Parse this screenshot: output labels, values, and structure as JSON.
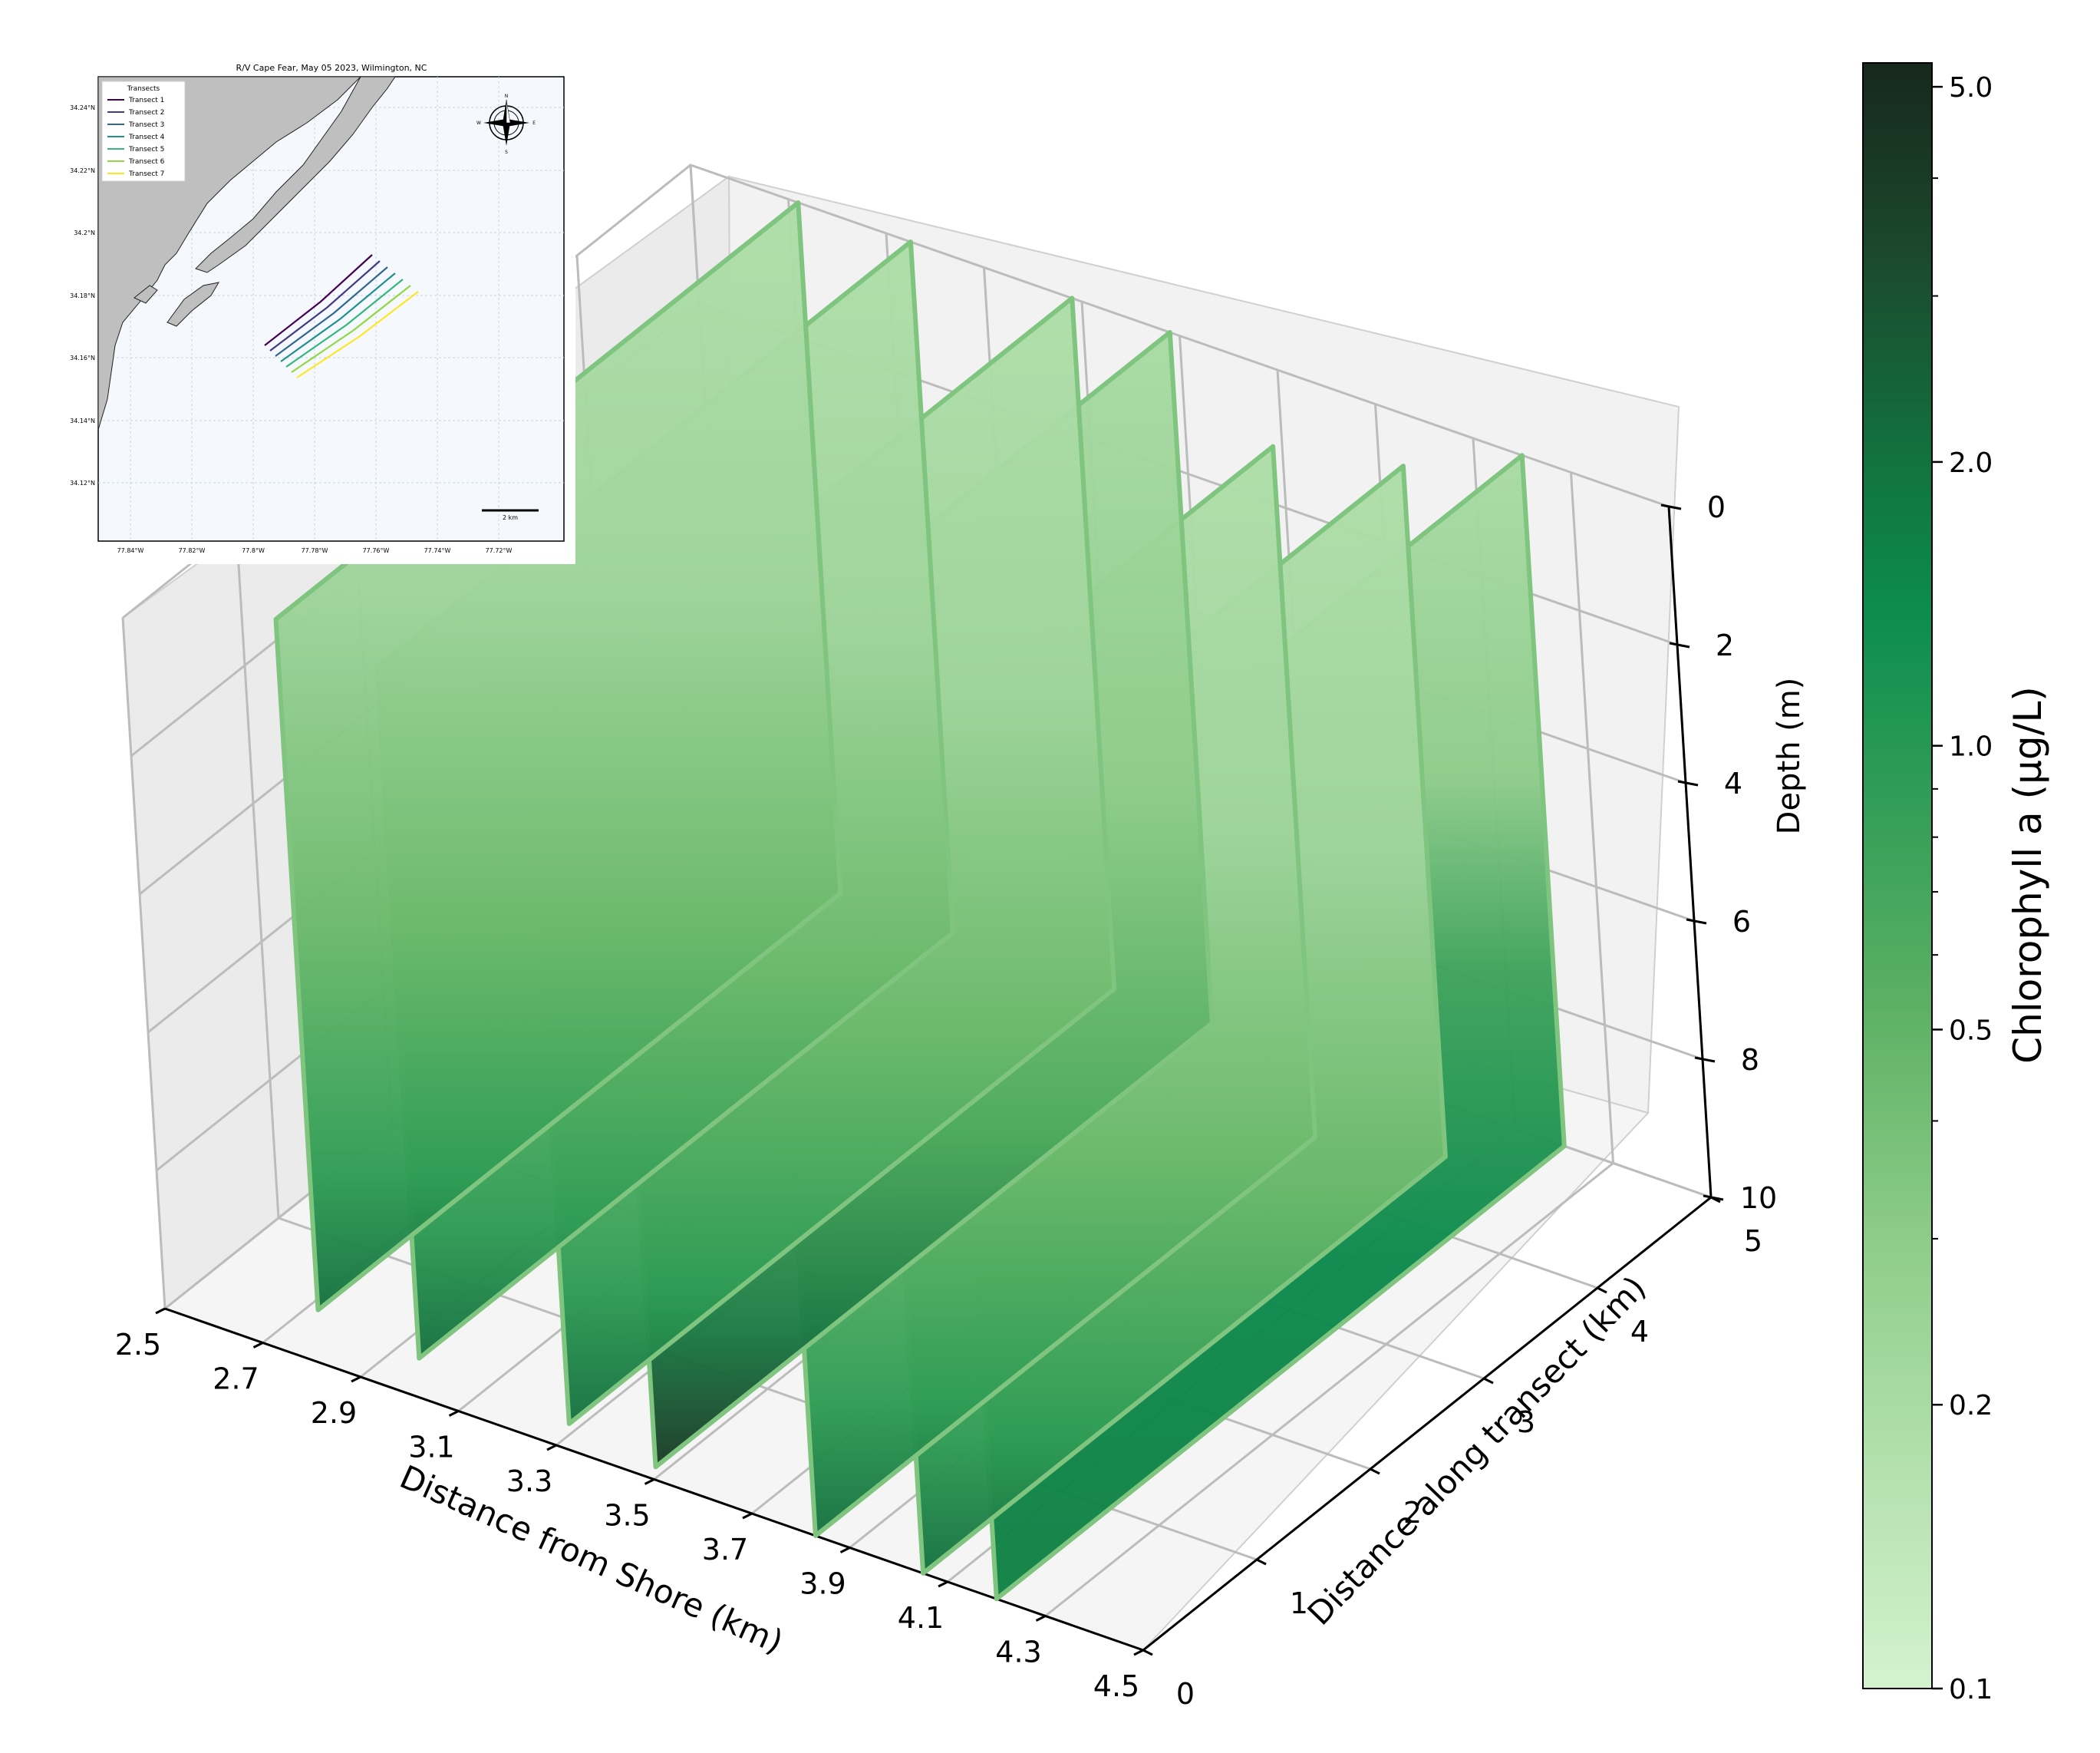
{
  "chart_data": [
    {
      "type": "scatter3d",
      "title": "",
      "xlabel": "Distance from Shore (km)",
      "ylabel": "Distance along transect (km)",
      "zlabel": "Depth (m)",
      "x_ticks": [
        "2.5",
        "2.7",
        "2.9",
        "3.1",
        "3.3",
        "3.5",
        "3.7",
        "3.9",
        "4.1",
        "4.3",
        "4.5"
      ],
      "y_ticks": [
        "0",
        "1",
        "2",
        "3",
        "4",
        "5"
      ],
      "z_ticks": [
        "0",
        "2",
        "4",
        "6",
        "8",
        "10"
      ],
      "xlim": [
        2.5,
        4.5
      ],
      "ylim": [
        0,
        5
      ],
      "zlim": [
        10,
        0
      ],
      "grid": true,
      "colormap": "Greens",
      "colors": {
        "light": "#d4f2cf",
        "mid": "#5cb064",
        "dark": "#0c8d4f",
        "darkest": "#17281c"
      },
      "curtains": [
        {
          "name": "Transect 1",
          "x": 2.72,
          "y_range": [
            0.4,
            5.0
          ],
          "depth_max": 10,
          "surface_chl": 0.16,
          "bottom_chl": 0.9
        },
        {
          "name": "Transect 2",
          "x": 2.95,
          "y_range": [
            0.3,
            5.0
          ],
          "depth_max": 10,
          "surface_chl": 0.16,
          "bottom_chl": 0.8
        },
        {
          "name": "Transect 3",
          "x": 3.28,
          "y_range": [
            0.2,
            5.0
          ],
          "depth_max": 10,
          "surface_chl": 0.15,
          "bottom_chl": 0.9
        },
        {
          "name": "Transect 4",
          "x": 3.48,
          "y_range": [
            0.1,
            5.0
          ],
          "depth_max": 10,
          "surface_chl": 0.15,
          "bottom_chl": 2.5
        },
        {
          "name": "Transect 5",
          "x": 3.83,
          "y_range": [
            0.0,
            4.4
          ],
          "depth_max": 10,
          "surface_chl": 0.16,
          "bottom_chl": 1.0
        },
        {
          "name": "Transect 6",
          "x": 4.05,
          "y_range": [
            0.0,
            4.6
          ],
          "depth_max": 10,
          "surface_chl": 0.17,
          "bottom_chl": 1.1
        },
        {
          "name": "Transect 7",
          "x": 4.2,
          "y_range": [
            0.0,
            5.0
          ],
          "depth_max": 10,
          "surface_chl": 0.17,
          "bottom_chl": 1.0
        }
      ]
    },
    {
      "type": "colorbar",
      "label": "Chlorophyll a (μg/L)",
      "scale": "log",
      "range": [
        0.1,
        5.3
      ],
      "ticks": [
        "0.1",
        "0.2",
        "0.5",
        "1.0",
        "2.0",
        "5.0"
      ]
    },
    {
      "type": "map",
      "title": "R/V Cape Fear, May 05 2023, Wilmington, NC",
      "legend_title": "Transects",
      "legend_entries": [
        {
          "name": "Transect 1",
          "color": "#440154"
        },
        {
          "name": "Transect 2",
          "color": "#443983"
        },
        {
          "name": "Transect 3",
          "color": "#31688e"
        },
        {
          "name": "Transect 4",
          "color": "#21918c"
        },
        {
          "name": "Transect 5",
          "color": "#35b779"
        },
        {
          "name": "Transect 6",
          "color": "#90d743"
        },
        {
          "name": "Transect 7",
          "color": "#fde725"
        }
      ],
      "lat_ticks": [
        "34.24°N",
        "34.22°N",
        "34.2°N",
        "34.18°N",
        "34.16°N",
        "34.14°N",
        "34.12°N"
      ],
      "lon_ticks": [
        "77.84°W",
        "77.82°W",
        "77.8°W",
        "77.78°W",
        "77.76°W",
        "77.74°W",
        "77.72°W"
      ],
      "compass": {
        "N": "N",
        "S": "S",
        "E": "E",
        "W": "W"
      },
      "scale_bar_label": "2 km",
      "colors": {
        "land": "#bfbfbf",
        "water": "#f5f9fe"
      }
    }
  ]
}
